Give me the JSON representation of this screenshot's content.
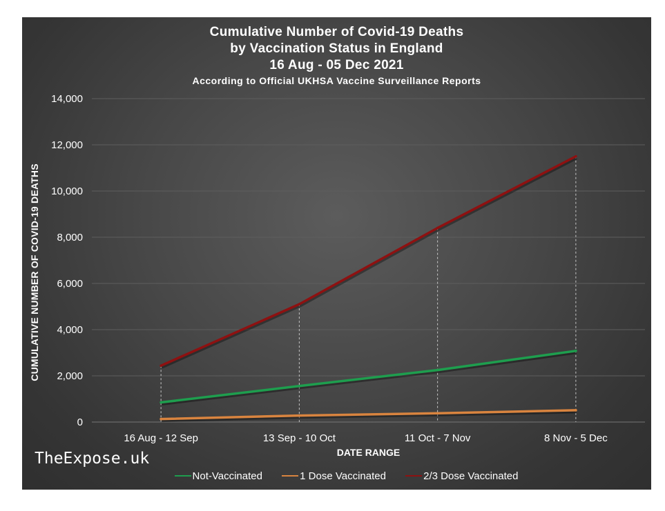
{
  "chart_data": {
    "type": "line",
    "title": "Cumulative Number of Covid-19 Deaths",
    "title_line2": "by Vaccination Status in England",
    "title_line3": "16 Aug - 05 Dec 2021",
    "subtitle": "According to Official UKHSA Vaccine Surveillance Reports",
    "xlabel": "DATE RANGE",
    "ylabel": "CUMULATIVE NUMBER OF COVID-19 DEATHS",
    "categories": [
      "16 Aug - 12 Sep",
      "13 Sep - 10 Oct",
      "11 Oct - 7 Nov",
      "8 Nov - 5 Dec"
    ],
    "ylim": [
      0,
      14000
    ],
    "yticks": [
      "0",
      "2,000",
      "4,000",
      "6,000",
      "8,000",
      "10,000",
      "12,000",
      "14,000"
    ],
    "ytick_values": [
      0,
      2000,
      4000,
      6000,
      8000,
      10000,
      12000,
      14000
    ],
    "grid": true,
    "legend_position": "bottom",
    "series": [
      {
        "name": "Not-Vaccinated",
        "values": [
          850,
          1560,
          2250,
          3080
        ],
        "color": "#1e9e4e"
      },
      {
        "name": "1 Dose Vaccinated",
        "values": [
          130,
          280,
          380,
          510
        ],
        "color": "#d9843f"
      },
      {
        "name": "2/3 Dose Vaccinated",
        "values": [
          2440,
          5100,
          8400,
          11500
        ],
        "color": "#8e1111"
      }
    ]
  },
  "watermark": "TheExpose.uk"
}
